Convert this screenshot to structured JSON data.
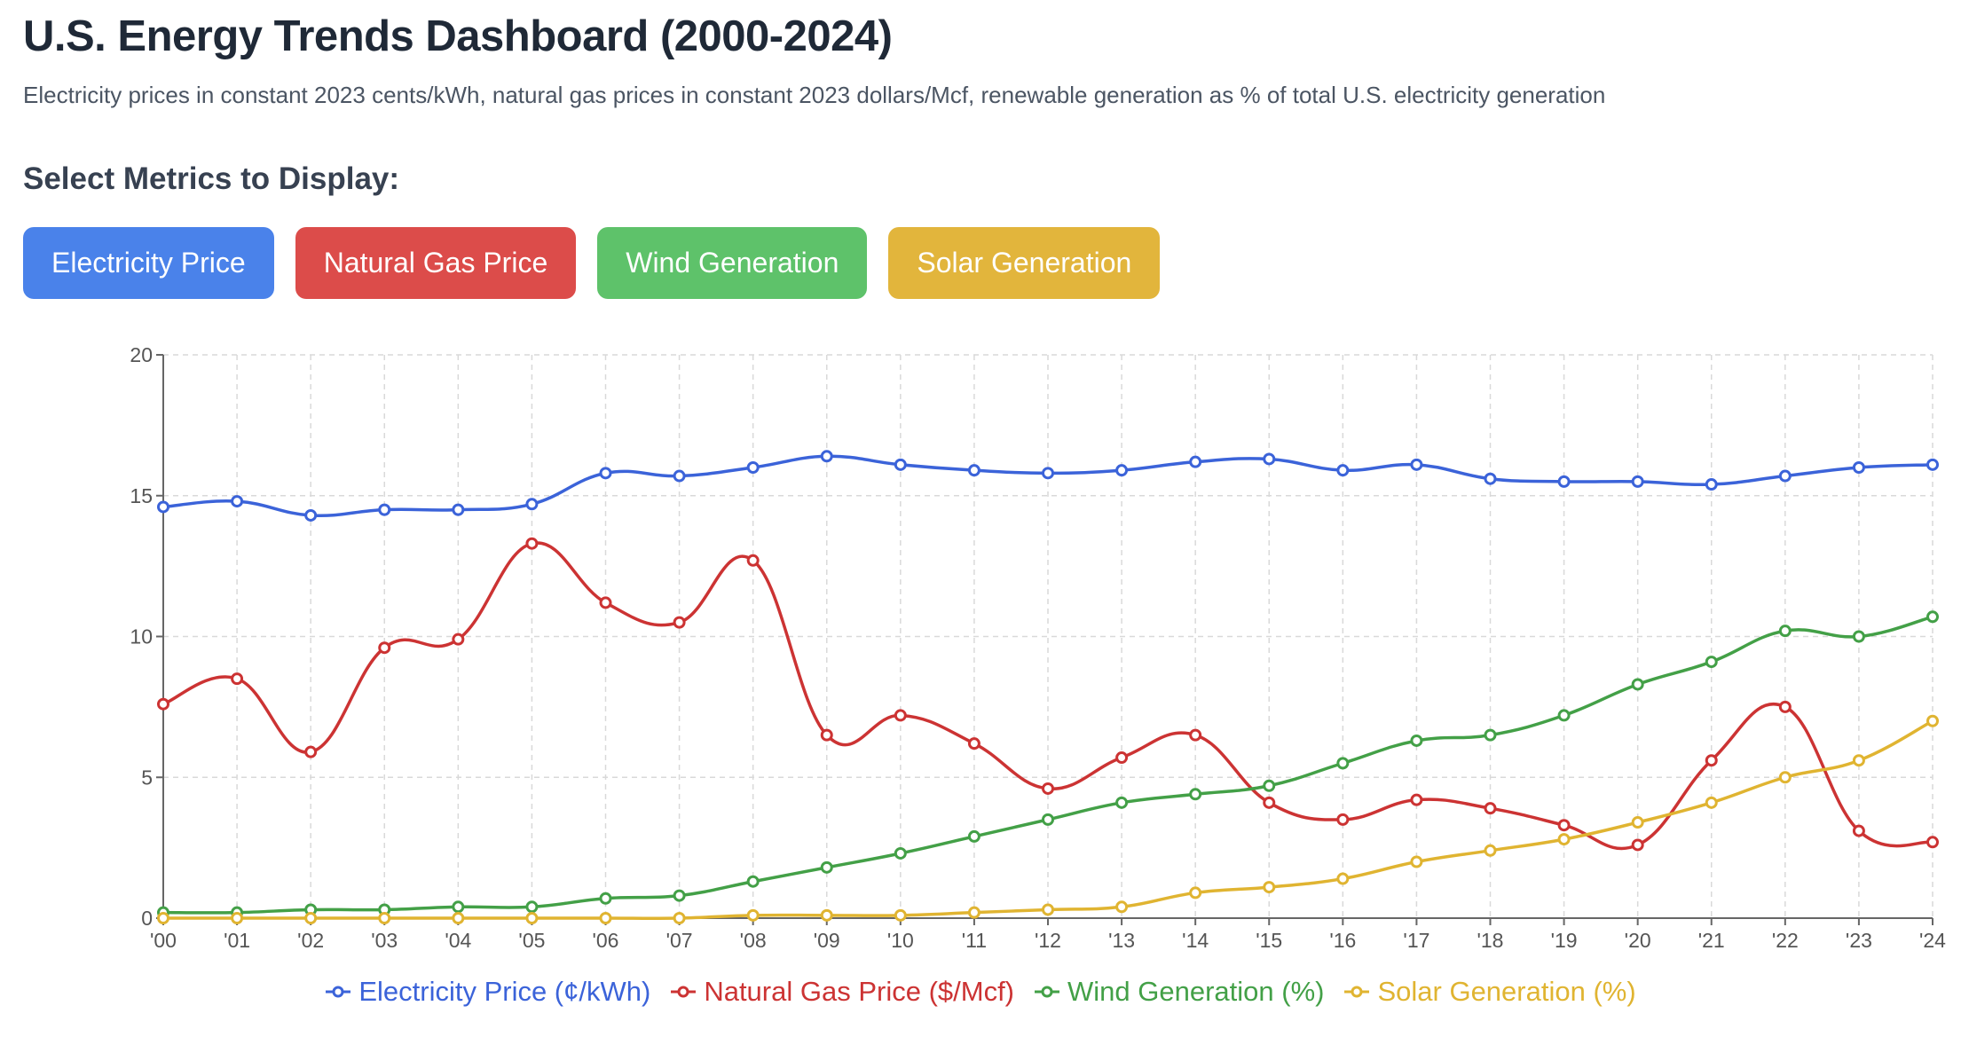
{
  "header": {
    "title": "U.S. Energy Trends Dashboard (2000-2024)",
    "subtitle": "Electricity prices in constant 2023 cents/kWh, natural gas prices in constant 2023 dollars/Mcf, renewable generation as % of total U.S. electricity generation"
  },
  "controls": {
    "heading": "Select Metrics to Display:",
    "buttons": [
      {
        "label": "Electricity Price",
        "color": "#4a82ea"
      },
      {
        "label": "Natural Gas Price",
        "color": "#dc4c4a"
      },
      {
        "label": "Wind Generation",
        "color": "#5ec26a"
      },
      {
        "label": "Solar Generation",
        "color": "#e2b53c"
      }
    ]
  },
  "chart_data": {
    "type": "line",
    "x": [
      "'00",
      "'01",
      "'02",
      "'03",
      "'04",
      "'05",
      "'06",
      "'07",
      "'08",
      "'09",
      "'10",
      "'11",
      "'12",
      "'13",
      "'14",
      "'15",
      "'16",
      "'17",
      "'18",
      "'19",
      "'20",
      "'21",
      "'22",
      "'23",
      "'24"
    ],
    "xlabel": "",
    "ylabel": "",
    "ylim": [
      0,
      20
    ],
    "yticks": [
      0,
      5,
      10,
      15,
      20
    ],
    "grid": true,
    "legend_position": "bottom",
    "series": [
      {
        "name": "Electricity Price (¢/kWh)",
        "color": "#3b63d9",
        "values": [
          14.6,
          14.8,
          14.3,
          14.5,
          14.5,
          14.7,
          15.8,
          15.7,
          16.0,
          16.4,
          16.1,
          15.9,
          15.8,
          15.9,
          16.2,
          16.3,
          15.9,
          16.1,
          15.6,
          15.5,
          15.5,
          15.4,
          15.7,
          16.0,
          16.1
        ]
      },
      {
        "name": "Natural Gas Price ($/Mcf)",
        "color": "#cc3333",
        "values": [
          7.6,
          8.5,
          5.9,
          9.6,
          9.9,
          13.3,
          11.2,
          10.5,
          12.7,
          6.5,
          7.2,
          6.2,
          4.6,
          5.7,
          6.5,
          4.1,
          3.5,
          4.2,
          3.9,
          3.3,
          2.6,
          5.6,
          7.5,
          3.1,
          2.7
        ]
      },
      {
        "name": "Wind Generation (%)",
        "color": "#43a047",
        "values": [
          0.2,
          0.2,
          0.3,
          0.3,
          0.4,
          0.4,
          0.7,
          0.8,
          1.3,
          1.8,
          2.3,
          2.9,
          3.5,
          4.1,
          4.4,
          4.7,
          5.5,
          6.3,
          6.5,
          7.2,
          8.3,
          9.1,
          10.2,
          10.0,
          10.7
        ]
      },
      {
        "name": "Solar Generation (%)",
        "color": "#e0b431",
        "values": [
          0.0,
          0.0,
          0.0,
          0.0,
          0.0,
          0.0,
          0.0,
          0.0,
          0.1,
          0.1,
          0.1,
          0.2,
          0.3,
          0.4,
          0.9,
          1.1,
          1.4,
          2.0,
          2.4,
          2.8,
          3.4,
          4.1,
          5.0,
          5.6,
          7.0
        ]
      }
    ]
  }
}
